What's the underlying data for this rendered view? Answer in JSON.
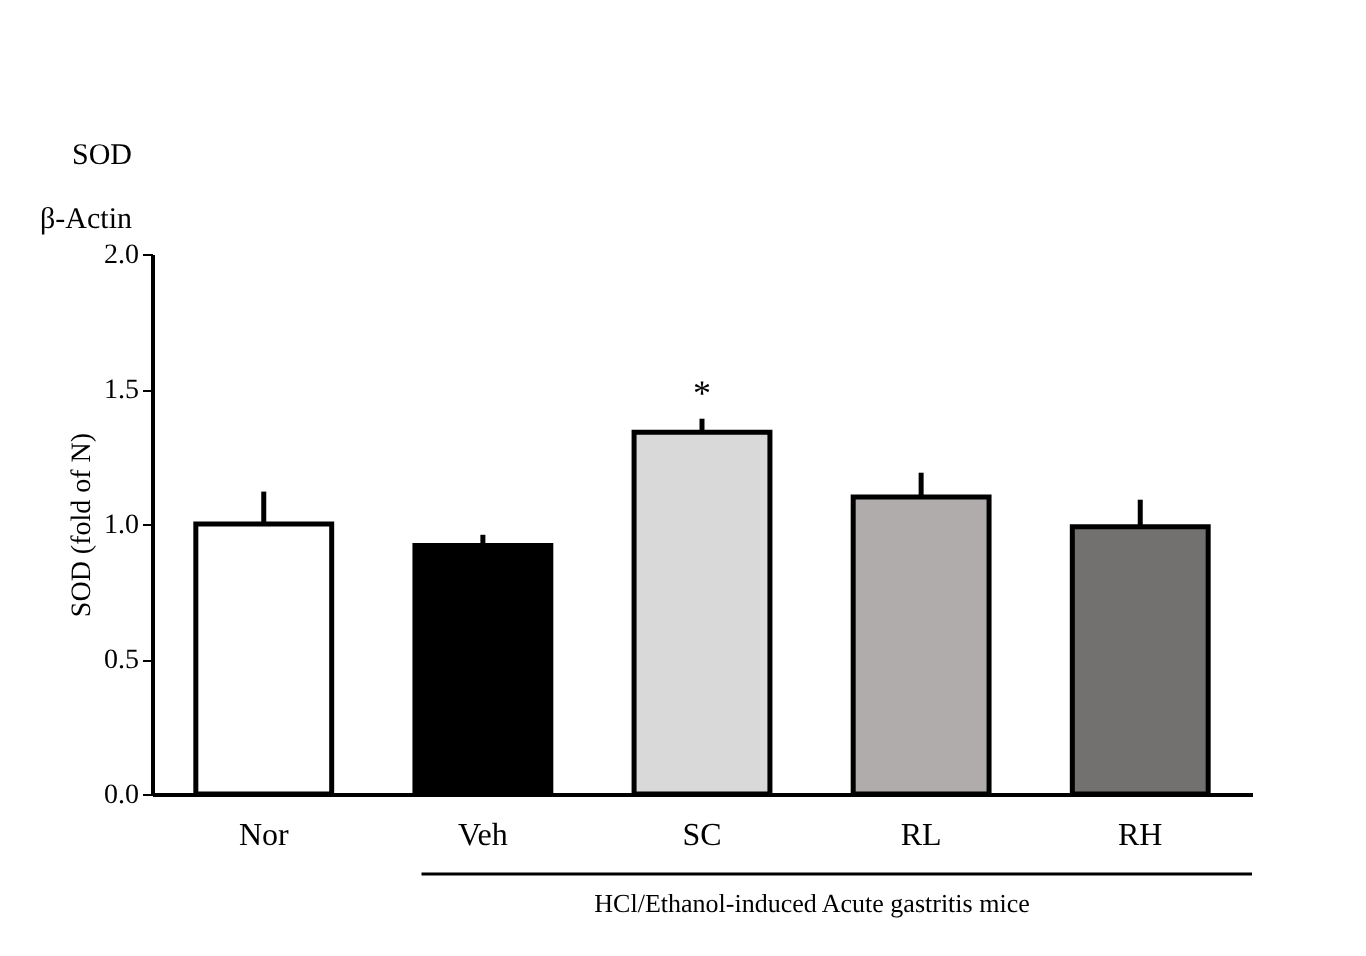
{
  "chart_data": {
    "type": "bar",
    "ylabel": "SOD  (fold of N)",
    "categories": [
      "Nor",
      "Veh",
      "SC",
      "RL",
      "RH"
    ],
    "values": [
      1.0,
      0.92,
      1.34,
      1.1,
      0.99
    ],
    "errors": [
      0.12,
      0.04,
      0.05,
      0.09,
      0.1
    ],
    "colors": [
      "#ffffff",
      "#000000",
      "#d9d9d9",
      "#b0acab",
      "#737070"
    ],
    "ylim": [
      0,
      2.0
    ],
    "yticks": [
      {
        "value": 0,
        "label": "0.0"
      },
      {
        "value": 0.5,
        "label": "0.5"
      },
      {
        "value": 1.0,
        "label": "1.0"
      },
      {
        "value": 1.5,
        "label": "1.5"
      },
      {
        "value": 2.0,
        "label": "2.0"
      }
    ],
    "annotations": [
      "SOD",
      "β-Actin",
      "HCl/Ethanol-induced Acute gastritis mice",
      {
        "text": "*",
        "x": "SC",
        "y": 1.41
      }
    ],
    "grid": false
  }
}
